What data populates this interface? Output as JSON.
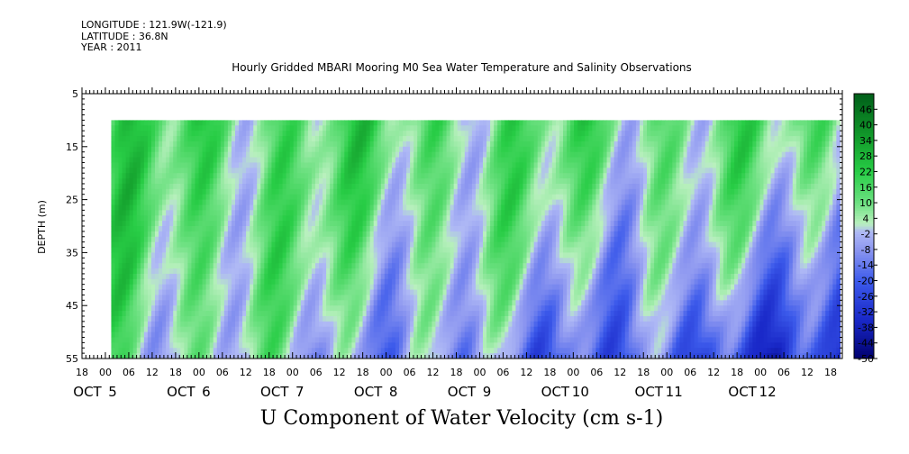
{
  "header": {
    "longitude": "LONGITUDE : 121.9W(-121.9)",
    "latitude": "LATITUDE : 36.8N",
    "year": "YEAR : 2011"
  },
  "chart_data": {
    "type": "heatmap",
    "title": "Hourly Gridded MBARI Mooring M0 Sea Water Temperature and Salinity Observations",
    "xlabel": "U Component of Water Velocity (cm s-1)",
    "ylabel": "DEPTH (m)",
    "ylim": [
      55,
      5
    ],
    "y_ticks": [
      "5",
      "15",
      "25",
      "35",
      "45",
      "55"
    ],
    "x_hour_ticks": [
      "18",
      "00",
      "06",
      "12",
      "18",
      "00",
      "06",
      "12",
      "18",
      "00",
      "06",
      "12",
      "18",
      "00",
      "06",
      "12",
      "18",
      "00",
      "06",
      "12",
      "18",
      "00",
      "06",
      "12",
      "18",
      "00",
      "06",
      "12",
      "18",
      "00",
      "06",
      "12",
      "18"
    ],
    "x_date_labels": [
      {
        "label": "OCT 5",
        "month": "OCT",
        "day": "5"
      },
      {
        "label": "OCT 6",
        "month": "OCT",
        "day": "6"
      },
      {
        "label": "OCT 7",
        "month": "OCT",
        "day": "7"
      },
      {
        "label": "OCT 8",
        "month": "OCT",
        "day": "8"
      },
      {
        "label": "OCT 9",
        "month": "OCT",
        "day": "9"
      },
      {
        "label": "OCT 10",
        "month": "OCT",
        "day": "10"
      },
      {
        "label": "OCT 11",
        "month": "OCT",
        "day": "11"
      },
      {
        "label": "OCT 12",
        "month": "OCT",
        "day": "12"
      }
    ],
    "data_depth_range": [
      10,
      55
    ],
    "colorbar": {
      "labels": [
        "46",
        "40",
        "34",
        "28",
        "22",
        "16",
        "10",
        "4",
        "-2",
        "-8",
        "-14",
        "-20",
        "-26",
        "-32",
        "-38",
        "-44",
        "-50"
      ],
      "range": [
        -50,
        52
      ]
    },
    "colors": {
      "strong_positive": "#006400",
      "positive": "#22c840",
      "weak_positive": "#a8eeb0",
      "weak_negative": "#9ea8f0",
      "negative": "#3050e0",
      "strong_negative": "#000070"
    }
  }
}
